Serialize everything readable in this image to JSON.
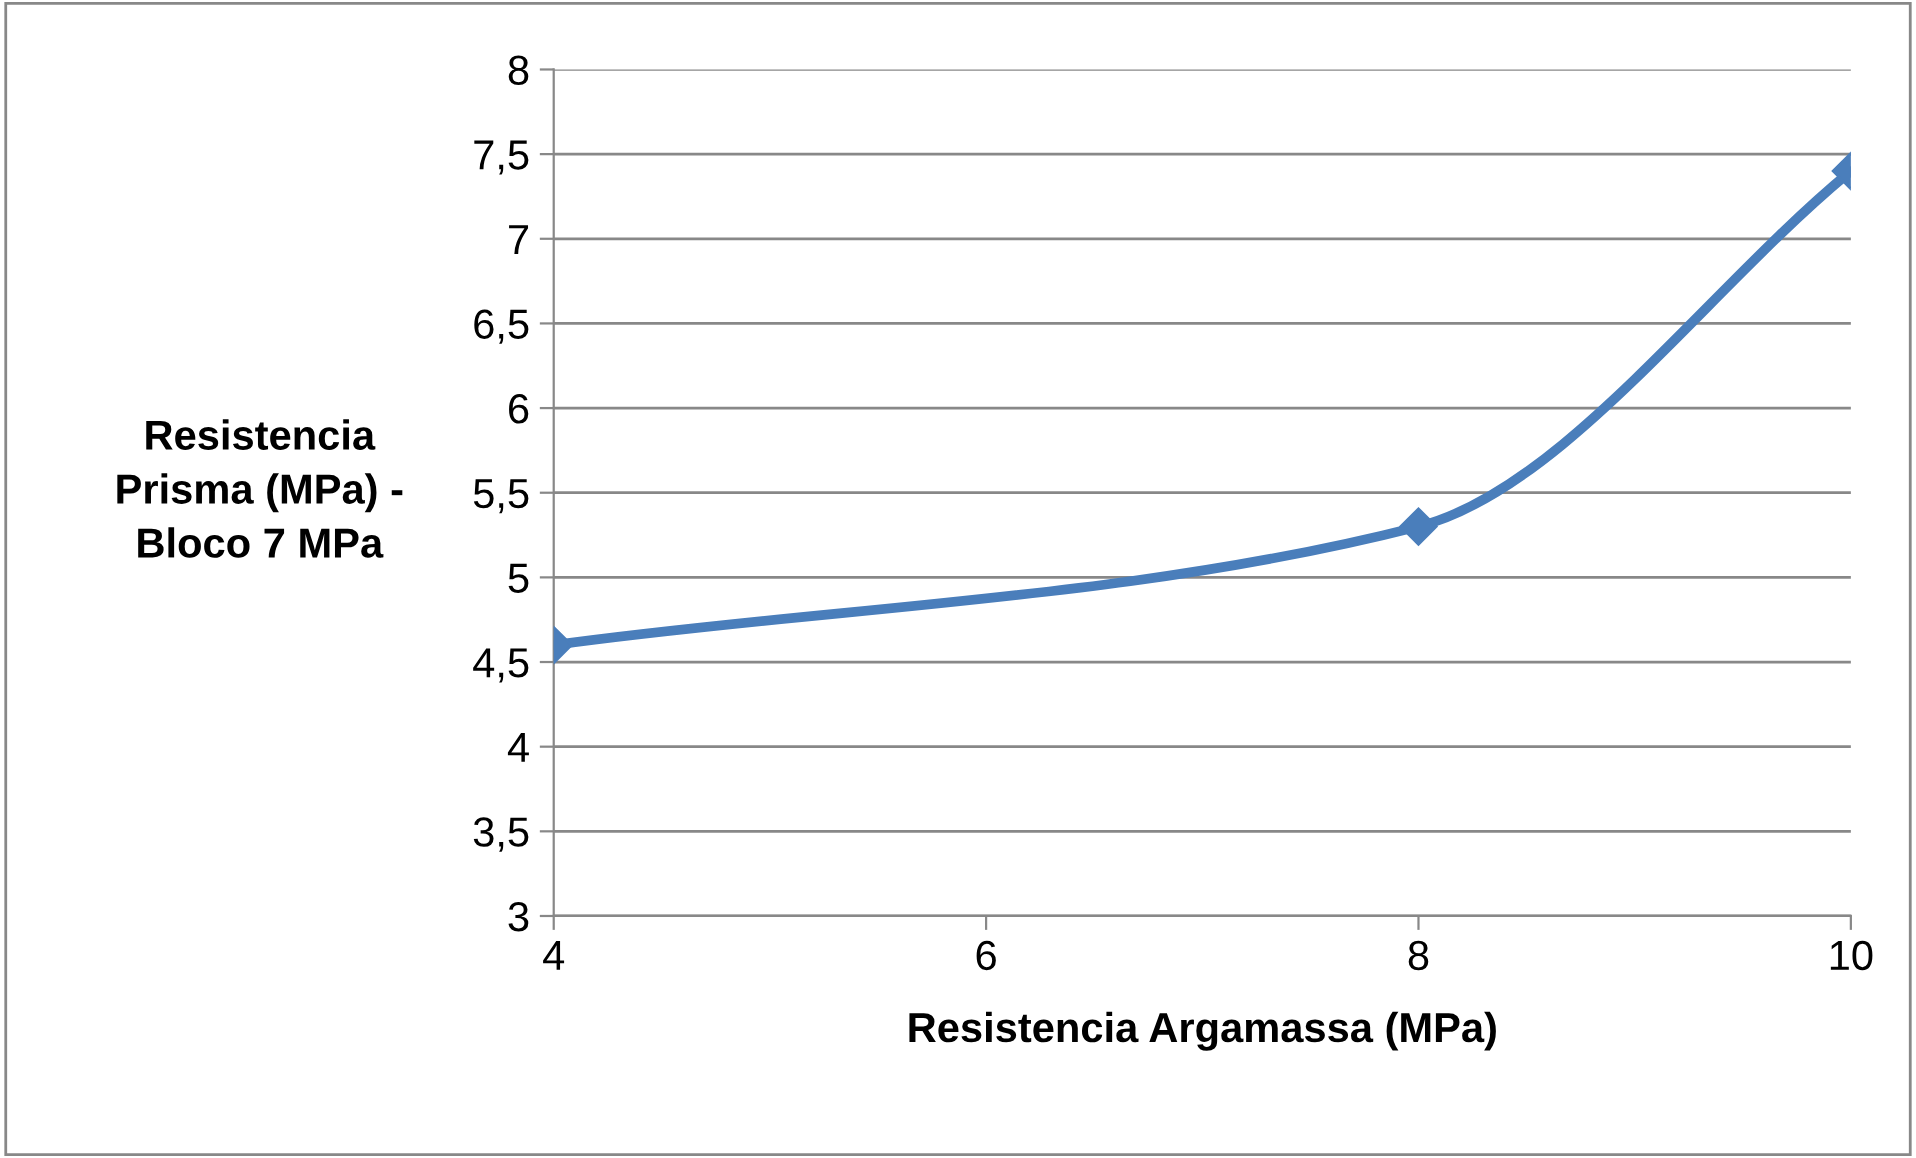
{
  "chart_data": {
    "type": "line",
    "xlabel": "Resistencia Argamassa (MPa)",
    "ylabel": "Resistencia\nPrisma (MPa) -\nBloco 7 MPa",
    "x": [
      4,
      8,
      10
    ],
    "series": [
      {
        "color": "#4a7ebb",
        "values": [
          4.6,
          5.3,
          7.4
        ]
      }
    ],
    "xlim": [
      4,
      10
    ],
    "xticks": [
      4,
      6,
      8,
      10
    ],
    "ylim": [
      3,
      8
    ],
    "yticks": [
      3,
      {
        "value": 3.5,
        "label": "3,5"
      },
      4,
      {
        "value": 4.5,
        "label": "4,5"
      },
      5,
      {
        "value": 5.5,
        "label": "5,5"
      },
      6,
      {
        "value": 6.5,
        "label": "6,5"
      },
      7,
      {
        "value": 7.5,
        "label": "7,5"
      },
      8
    ],
    "grid": "y",
    "marker": "diamond",
    "line_style": "solid",
    "legend": false
  }
}
